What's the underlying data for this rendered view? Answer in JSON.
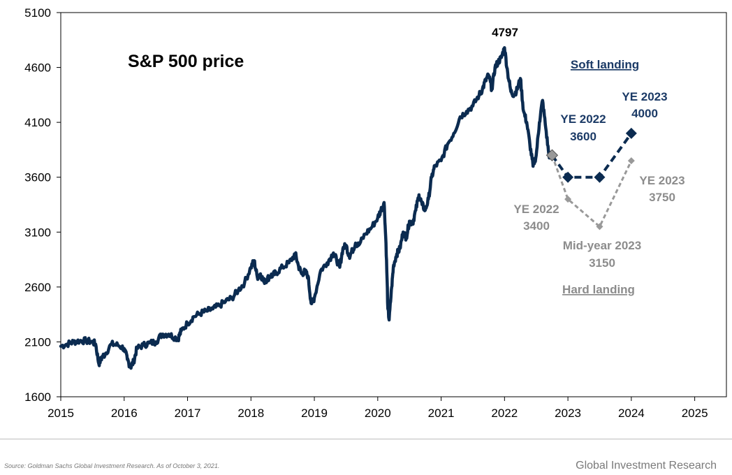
{
  "chart_data": {
    "type": "line",
    "title": "S&P 500 price",
    "xlabel": "",
    "ylabel": "",
    "xlim": [
      2015,
      2025.5
    ],
    "ylim": [
      1600,
      5100
    ],
    "x_ticks": [
      "2015",
      "2016",
      "2017",
      "2018",
      "2019",
      "2020",
      "2021",
      "2022",
      "2023",
      "2024",
      "2025"
    ],
    "y_ticks": [
      "1600",
      "2100",
      "2600",
      "3100",
      "3600",
      "4100",
      "4600",
      "5100"
    ],
    "grid": false,
    "colors": {
      "history": "#0b2b50",
      "soft": "#0b2b50",
      "hard": "#999999",
      "start_marker": "#999999"
    },
    "series": [
      {
        "type": "line",
        "x": [
          2015.0,
          2015.1,
          2015.2,
          2015.3,
          2015.4,
          2015.5,
          2015.55,
          2015.6,
          2015.65,
          2015.7,
          2015.8,
          2015.9,
          2016.0,
          2016.05,
          2016.1,
          2016.15,
          2016.2,
          2016.3,
          2016.4,
          2016.5,
          2016.6,
          2016.7,
          2016.8,
          2016.85,
          2016.9,
          2017.0,
          2017.1,
          2017.2,
          2017.3,
          2017.4,
          2017.5,
          2017.6,
          2017.7,
          2017.8,
          2017.9,
          2018.0,
          2018.05,
          2018.1,
          2018.15,
          2018.2,
          2018.25,
          2018.3,
          2018.35,
          2018.4,
          2018.5,
          2018.6,
          2018.7,
          2018.75,
          2018.8,
          2018.85,
          2018.9,
          2018.95,
          2019.0,
          2019.1,
          2019.2,
          2019.3,
          2019.35,
          2019.4,
          2019.45,
          2019.5,
          2019.55,
          2019.6,
          2019.65,
          2019.7,
          2019.8,
          2019.9,
          2020.0,
          2020.05,
          2020.1,
          2020.13,
          2020.16,
          2020.18,
          2020.22,
          2020.25,
          2020.3,
          2020.35,
          2020.4,
          2020.45,
          2020.5,
          2020.55,
          2020.6,
          2020.65,
          2020.7,
          2020.75,
          2020.8,
          2020.85,
          2020.9,
          2021.0,
          2021.1,
          2021.2,
          2021.3,
          2021.4,
          2021.5,
          2021.6,
          2021.65,
          2021.7,
          2021.75,
          2021.8,
          2021.85,
          2021.9,
          2021.95,
          2022.0,
          2022.05,
          2022.1,
          2022.15,
          2022.2,
          2022.25,
          2022.3,
          2022.35,
          2022.4,
          2022.45,
          2022.5,
          2022.55,
          2022.6,
          2022.65,
          2022.7,
          2022.75
        ],
        "y": [
          2060,
          2080,
          2100,
          2110,
          2110,
          2100,
          2080,
          1900,
          1960,
          1990,
          2080,
          2070,
          2040,
          1940,
          1870,
          1920,
          2040,
          2070,
          2090,
          2100,
          2170,
          2170,
          2140,
          2130,
          2200,
          2270,
          2330,
          2360,
          2380,
          2400,
          2430,
          2470,
          2500,
          2570,
          2640,
          2780,
          2840,
          2690,
          2720,
          2650,
          2670,
          2700,
          2710,
          2730,
          2780,
          2820,
          2900,
          2790,
          2720,
          2740,
          2700,
          2450,
          2500,
          2750,
          2820,
          2910,
          2850,
          2780,
          2950,
          2980,
          2880,
          2930,
          3000,
          2980,
          3080,
          3140,
          3230,
          3300,
          3370,
          3000,
          2400,
          2300,
          2600,
          2800,
          2900,
          2950,
          3100,
          3050,
          3200,
          3180,
          3300,
          3440,
          3350,
          3300,
          3400,
          3600,
          3700,
          3750,
          3900,
          4000,
          4150,
          4200,
          4250,
          4350,
          4400,
          4480,
          4530,
          4400,
          4600,
          4650,
          4690,
          4780,
          4550,
          4380,
          4350,
          4400,
          4500,
          4200,
          4100,
          3900,
          3700,
          3800,
          4100,
          4300,
          4050,
          3800,
          3800
        ]
      },
      {
        "name": "Soft landing",
        "x": [
          2022.75,
          2023.0,
          2023.5,
          2024.0
        ],
        "y": [
          3800,
          3600,
          3600,
          4000
        ]
      },
      {
        "name": "Hard landing",
        "x": [
          2022.75,
          2023.0,
          2023.5,
          2024.0
        ],
        "y": [
          3800,
          3400,
          3150,
          3750
        ]
      }
    ],
    "annotations": {
      "peak": "4797",
      "soft_label": "Soft landing",
      "soft_ye2022_a": "YE 2022",
      "soft_ye2022_b": "3600",
      "soft_ye2023_a": "YE 2023",
      "soft_ye2023_b": "4000",
      "hard_label": "Hard landing",
      "hard_ye2022_a": "YE 2022",
      "hard_ye2022_b": "3400",
      "hard_mid_a": "Mid-year 2023",
      "hard_mid_b": "3150",
      "hard_ye2023_a": "YE 2023",
      "hard_ye2023_b": "3750"
    }
  },
  "footer": {
    "source": "Source: Goldman Sachs Global Investment Research. As of October 3, 2021.",
    "brand": "Global Investment Research"
  }
}
